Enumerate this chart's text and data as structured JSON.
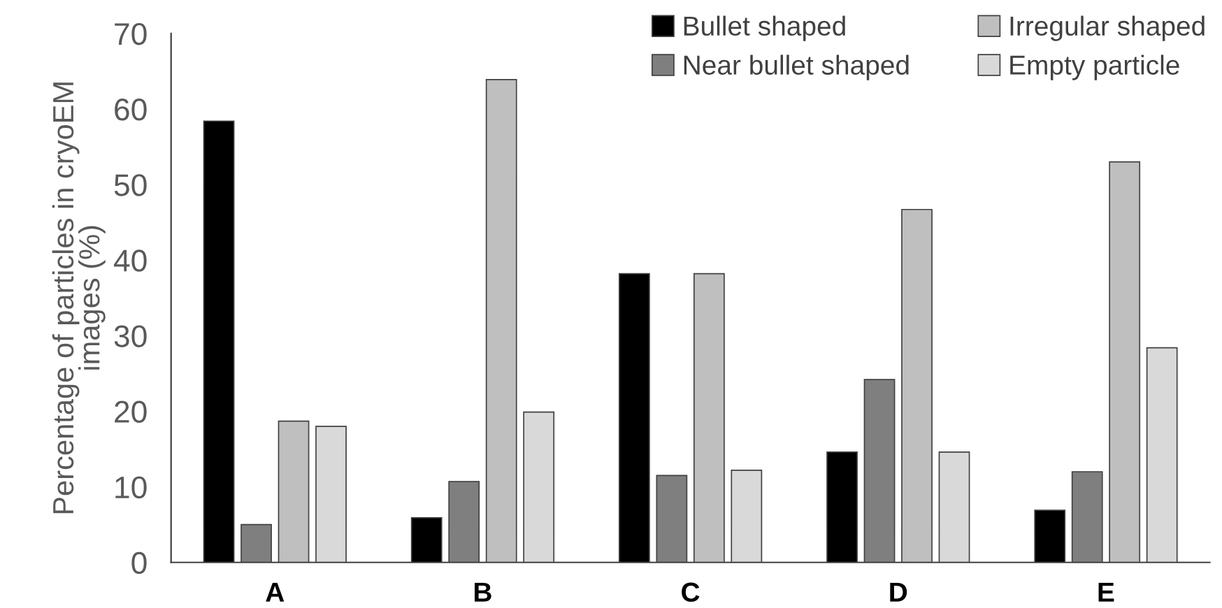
{
  "chart_data": {
    "type": "bar",
    "ylabel": "Percentage of particles in cryoEM\nimages (%)",
    "categories": [
      "A",
      "B",
      "C",
      "D",
      "E"
    ],
    "series": [
      {
        "name": "Bullet shaped",
        "color": "#000000",
        "values": [
          58.4,
          5.9,
          38.2,
          14.6,
          6.9
        ]
      },
      {
        "name": "Near bullet shaped",
        "color": "#7f7f7f",
        "values": [
          5.0,
          10.7,
          11.5,
          24.2,
          12.0
        ]
      },
      {
        "name": "Irregular shaped",
        "color": "#bfbfbf",
        "values": [
          18.7,
          63.9,
          38.2,
          46.7,
          53.0
        ]
      },
      {
        "name": "Empty particle",
        "color": "#d9d9d9",
        "values": [
          18.0,
          19.9,
          12.2,
          14.6,
          28.4
        ]
      }
    ],
    "ylim": [
      0,
      70
    ],
    "yticks": [
      0,
      10,
      20,
      30,
      40,
      50,
      60,
      70
    ],
    "grid": false,
    "legend": "top right"
  }
}
